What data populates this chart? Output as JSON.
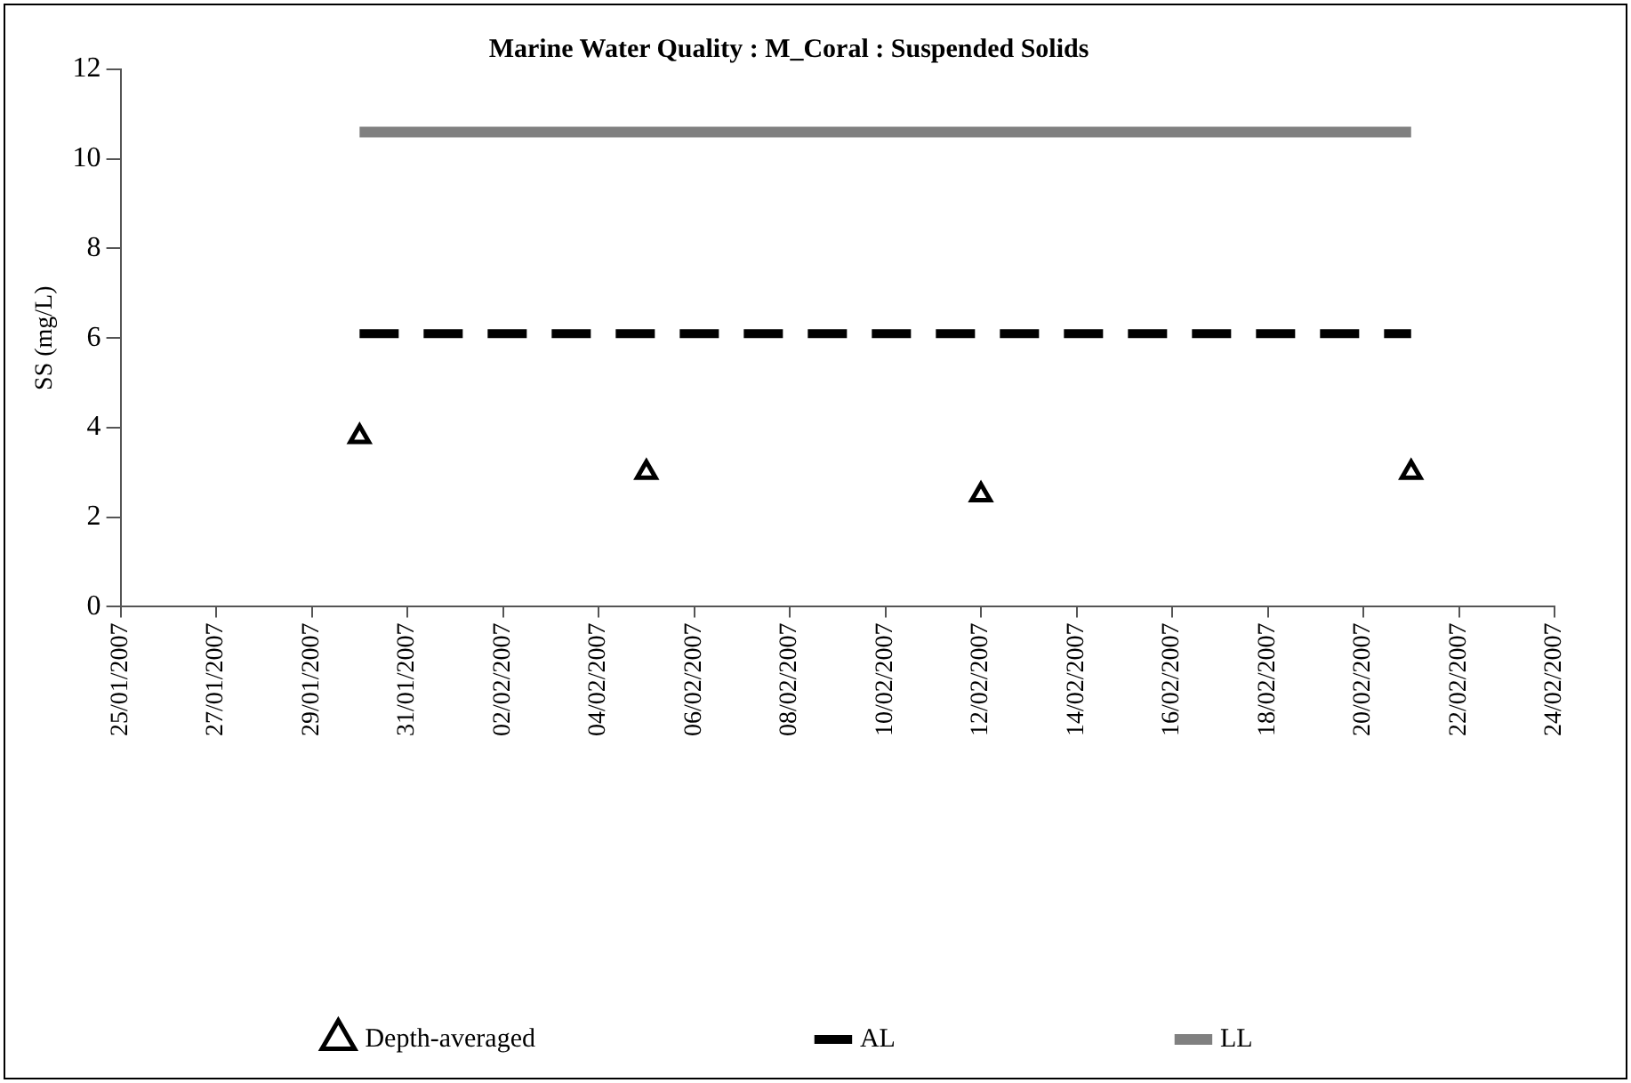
{
  "chart_data": {
    "type": "scatter",
    "title": "Marine Water Quality : M_Coral : Suspended Solids",
    "ylabel": "SS (mg/L)",
    "xlim": [
      "2007-01-25",
      "2007-02-24"
    ],
    "xticks": [
      {
        "value": "2007-01-25",
        "label": "25/01/2007"
      },
      {
        "value": "2007-01-27",
        "label": "27/01/2007"
      },
      {
        "value": "2007-01-29",
        "label": "29/01/2007"
      },
      {
        "value": "2007-01-31",
        "label": "31/01/2007"
      },
      {
        "value": "2007-02-02",
        "label": "02/02/2007"
      },
      {
        "value": "2007-02-04",
        "label": "04/02/2007"
      },
      {
        "value": "2007-02-06",
        "label": "06/02/2007"
      },
      {
        "value": "2007-02-08",
        "label": "08/02/2007"
      },
      {
        "value": "2007-02-10",
        "label": "10/02/2007"
      },
      {
        "value": "2007-02-12",
        "label": "12/02/2007"
      },
      {
        "value": "2007-02-14",
        "label": "14/02/2007"
      },
      {
        "value": "2007-02-16",
        "label": "16/02/2007"
      },
      {
        "value": "2007-02-18",
        "label": "18/02/2007"
      },
      {
        "value": "2007-02-20",
        "label": "20/02/2007"
      },
      {
        "value": "2007-02-22",
        "label": "22/02/2007"
      },
      {
        "value": "2007-02-24",
        "label": "24/02/2007"
      }
    ],
    "ylim": [
      0,
      12
    ],
    "yticks": [
      0,
      2,
      4,
      6,
      8,
      10,
      12
    ],
    "grid": false,
    "legend": "bottom",
    "series": [
      {
        "name": "Depth-averaged",
        "marker": "triangle",
        "color": "#000000",
        "x": [
          "2007-01-30",
          "2007-02-05",
          "2007-02-12",
          "2007-02-21"
        ],
        "values": [
          3.8,
          3.0,
          2.5,
          3.0
        ]
      },
      {
        "name": "AL",
        "type": "line",
        "marker": "none",
        "line_style": "dashed",
        "color": "#000000",
        "x": [
          "2007-01-30",
          "2007-02-21"
        ],
        "values": [
          6.1,
          6.1
        ]
      },
      {
        "name": "LL",
        "type": "line",
        "marker": "none",
        "line_style": "solid",
        "color": "#808080",
        "x": [
          "2007-01-30",
          "2007-02-21"
        ],
        "values": [
          10.6,
          10.6
        ]
      }
    ]
  }
}
